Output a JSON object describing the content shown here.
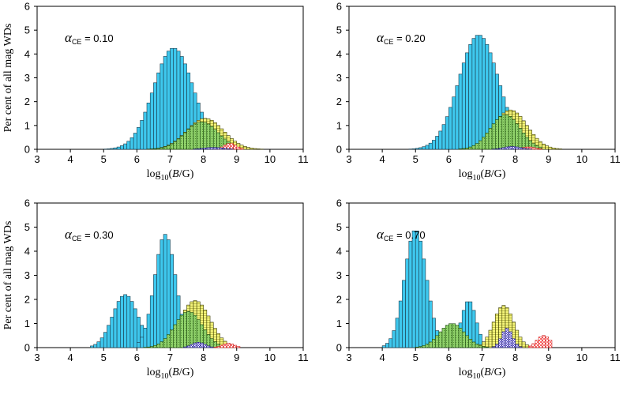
{
  "figure": {
    "ylabel": "Per cent of all mag WDs",
    "xlabel_parts": [
      "log",
      "10",
      "(",
      "B",
      "/G)"
    ]
  },
  "colors": {
    "series_a": "#3ec8ee",
    "series_b": "#f4f47a",
    "series_c": "#8fd16a",
    "series_d": "#ffb8b8",
    "series_e": "#6a5acd"
  },
  "chart_data": [
    {
      "type": "bar",
      "title": "",
      "annotation": {
        "symbol": "α",
        "subscript": "CE",
        "value": " = 0.10"
      },
      "annotation_pos": "top-left",
      "xlabel": "log10(B/G)",
      "ylabel": "Per cent of all mag WDs",
      "xlim": [
        3,
        11
      ],
      "ylim": [
        0,
        6
      ],
      "xticks": [
        3,
        4,
        5,
        6,
        7,
        8,
        9,
        10,
        11
      ],
      "yticks": [
        0,
        1,
        2,
        3,
        4,
        5,
        6
      ],
      "bin_width": 0.1,
      "series": [
        {
          "name": "blue",
          "color": "#3ec8ee",
          "center": 7.1,
          "sigma": 0.6,
          "peak": 4.25,
          "range": [
            4.0,
            8.6
          ]
        },
        {
          "name": "yellow",
          "color": "#f4f47a",
          "center": 8.05,
          "sigma": 0.55,
          "peak": 1.3,
          "range": [
            6.3,
            9.9
          ]
        },
        {
          "name": "green",
          "color": "#8fd16a",
          "center": 7.95,
          "sigma": 0.5,
          "peak": 1.15,
          "range": [
            6.3,
            9.0
          ]
        },
        {
          "name": "red",
          "color": "#ffb8b8",
          "center": 8.8,
          "sigma": 0.18,
          "peak": 0.25,
          "range": [
            8.3,
            9.2
          ]
        },
        {
          "name": "purple",
          "color": "#6a5acd",
          "center": 8.3,
          "sigma": 0.3,
          "peak": 0.08,
          "range": [
            7.6,
            9.0
          ]
        }
      ]
    },
    {
      "type": "bar",
      "title": "",
      "annotation": {
        "symbol": "α",
        "subscript": "CE",
        "value": " = 0.20"
      },
      "annotation_pos": "top-left",
      "xlabel": "log10(B/G)",
      "ylabel": "",
      "xlim": [
        3,
        11
      ],
      "ylim": [
        0,
        6
      ],
      "xticks": [
        3,
        4,
        5,
        6,
        7,
        8,
        9,
        10,
        11
      ],
      "yticks": [
        0,
        1,
        2,
        3,
        4,
        5,
        6
      ],
      "bin_width": 0.1,
      "series": [
        {
          "name": "blue",
          "color": "#3ec8ee",
          "center": 6.9,
          "sigma": 0.6,
          "peak": 4.8,
          "range": [
            4.6,
            8.3
          ]
        },
        {
          "name": "yellow",
          "color": "#f4f47a",
          "center": 7.85,
          "sigma": 0.5,
          "peak": 1.65,
          "range": [
            6.3,
            9.5
          ]
        },
        {
          "name": "green",
          "color": "#8fd16a",
          "center": 7.7,
          "sigma": 0.45,
          "peak": 1.45,
          "range": [
            6.3,
            8.8
          ]
        },
        {
          "name": "red",
          "color": "#ffb8b8",
          "center": 8.4,
          "sigma": 0.2,
          "peak": 0.1,
          "range": [
            7.9,
            8.9
          ]
        },
        {
          "name": "purple",
          "color": "#6a5acd",
          "center": 7.9,
          "sigma": 0.25,
          "peak": 0.12,
          "range": [
            7.3,
            8.6
          ]
        }
      ]
    },
    {
      "type": "bar",
      "title": "",
      "annotation": {
        "symbol": "α",
        "subscript": "CE",
        "value": " = 0.30"
      },
      "annotation_pos": "top-left",
      "xlabel": "log10(B/G)",
      "ylabel": "Per cent of all mag WDs",
      "xlim": [
        3,
        11
      ],
      "ylim": [
        0,
        6
      ],
      "xticks": [
        3,
        4,
        5,
        6,
        7,
        8,
        9,
        10,
        11
      ],
      "yticks": [
        0,
        1,
        2,
        3,
        4,
        5,
        6
      ],
      "bin_width": 0.1,
      "series": [
        {
          "name": "blue-lo",
          "color": "#3ec8ee",
          "center": 5.65,
          "sigma": 0.38,
          "peak": 2.2,
          "range": [
            4.6,
            6.5
          ]
        },
        {
          "name": "blue-hi",
          "color": "#3ec8ee",
          "center": 6.85,
          "sigma": 0.32,
          "peak": 4.7,
          "range": [
            6.0,
            8.0
          ]
        },
        {
          "name": "yellow",
          "color": "#f4f47a",
          "center": 7.75,
          "sigma": 0.45,
          "peak": 1.95,
          "range": [
            6.3,
            9.0
          ]
        },
        {
          "name": "green",
          "color": "#8fd16a",
          "center": 7.55,
          "sigma": 0.42,
          "peak": 1.5,
          "range": [
            6.0,
            8.7
          ]
        },
        {
          "name": "red",
          "color": "#ffb8b8",
          "center": 8.75,
          "sigma": 0.18,
          "peak": 0.18,
          "range": [
            8.3,
            9.1
          ]
        },
        {
          "name": "purple",
          "color": "#6a5acd",
          "center": 7.85,
          "sigma": 0.2,
          "peak": 0.22,
          "range": [
            7.3,
            8.5
          ]
        }
      ]
    },
    {
      "type": "bar",
      "title": "",
      "annotation": {
        "symbol": "α",
        "subscript": "CE",
        "value": " = 0.70"
      },
      "annotation_pos": "top-left",
      "xlabel": "log10(B/G)",
      "ylabel": "",
      "xlim": [
        3,
        11
      ],
      "ylim": [
        0,
        6
      ],
      "xticks": [
        3,
        4,
        5,
        6,
        7,
        8,
        9,
        10,
        11
      ],
      "yticks": [
        0,
        1,
        2,
        3,
        4,
        5,
        6
      ],
      "bin_width": 0.1,
      "series": [
        {
          "name": "blue-lo",
          "color": "#3ec8ee",
          "center": 5.0,
          "sigma": 0.33,
          "peak": 4.9,
          "range": [
            4.0,
            6.0
          ]
        },
        {
          "name": "blue-hi",
          "color": "#3ec8ee",
          "center": 6.6,
          "sigma": 0.22,
          "peak": 1.95,
          "range": [
            5.9,
            7.3
          ]
        },
        {
          "name": "green",
          "color": "#8fd16a",
          "center": 6.1,
          "sigma": 0.38,
          "peak": 1.0,
          "range": [
            5.0,
            7.2
          ]
        },
        {
          "name": "yellow",
          "color": "#f4f47a",
          "center": 7.65,
          "sigma": 0.3,
          "peak": 1.75,
          "range": [
            6.8,
            8.5
          ]
        },
        {
          "name": "purple",
          "color": "#6a5acd",
          "center": 7.75,
          "sigma": 0.16,
          "peak": 0.8,
          "range": [
            7.3,
            8.3
          ]
        },
        {
          "name": "red",
          "color": "#ffb8b8",
          "center": 8.85,
          "sigma": 0.2,
          "peak": 0.5,
          "range": [
            8.4,
            9.1
          ]
        }
      ]
    }
  ]
}
